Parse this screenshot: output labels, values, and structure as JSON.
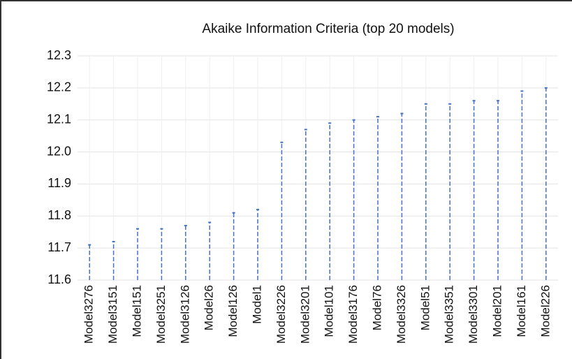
{
  "chart_data": {
    "type": "stem",
    "title": "Akaike Information Criteria (top 20 models)",
    "categories": [
      "Model3276",
      "Model3151",
      "Model151",
      "Model3251",
      "Model3126",
      "Model26",
      "Model126",
      "Model1",
      "Model3226",
      "Model3201",
      "Model101",
      "Model3176",
      "Model76",
      "Model3326",
      "Model51",
      "Model3351",
      "Model3301",
      "Model201",
      "Model161",
      "Model226"
    ],
    "values": [
      11.71,
      11.72,
      11.76,
      11.76,
      11.77,
      11.78,
      11.81,
      11.82,
      12.03,
      12.07,
      12.09,
      12.1,
      12.11,
      12.12,
      12.15,
      12.15,
      12.16,
      12.16,
      12.19,
      12.2
    ],
    "color": "#4472c4",
    "ylim": [
      11.6,
      12.3
    ],
    "yticks": [
      11.6,
      11.7,
      11.8,
      11.9,
      {
        "value": 12,
        "label": "12.0"
      },
      12.1,
      12.2,
      12.3
    ],
    "grid": true
  }
}
